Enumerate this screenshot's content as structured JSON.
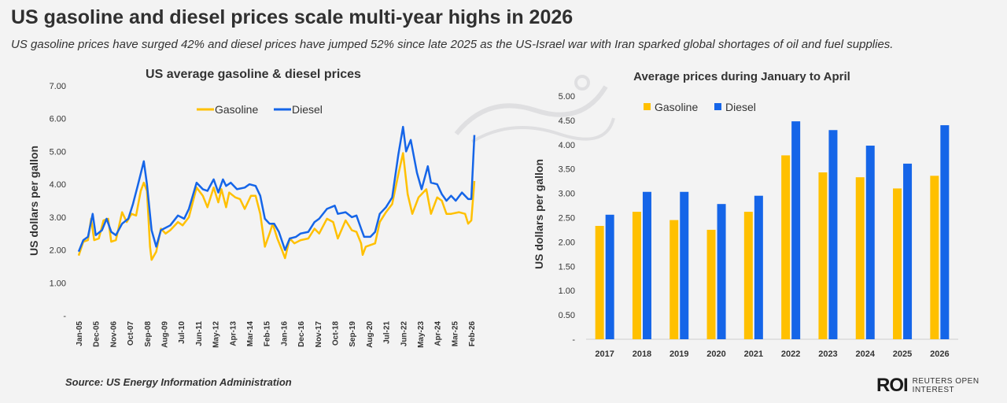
{
  "headline": "US gasoline and diesel prices scale multi-year highs in 2026",
  "subheadline": "US gasoline prices have surged 42% and diesel prices have jumped 52% since late 2025 as the US-Israel war with Iran sparked global shortages of oil and fuel supplies.",
  "source": "Source:  US Energy Information Administration",
  "logo": {
    "mark": "ROI",
    "line1": "REUTERS OPEN",
    "line2": "INTEREST"
  },
  "colors": {
    "gasoline": "#FFC000",
    "diesel": "#1565E8"
  },
  "chart_data": [
    {
      "type": "line",
      "title": "US average gasoline & diesel prices",
      "xlabel": "",
      "ylabel": "US dollars per gallon",
      "ylim": [
        0,
        7
      ],
      "yticks": [
        "-",
        "1.00",
        "2.00",
        "3.00",
        "4.00",
        "5.00",
        "6.00",
        "7.00"
      ],
      "xticks": [
        "Jan-05",
        "Dec-05",
        "Nov-06",
        "Oct-07",
        "Sep-08",
        "Aug-09",
        "Jul-10",
        "Jun-11",
        "May-12",
        "Apr-13",
        "Mar-14",
        "Feb-15",
        "Jan-16",
        "Dec-16",
        "Nov-17",
        "Oct-18",
        "Sep-19",
        "Aug-20",
        "Jul-21",
        "Jun-22",
        "May-23",
        "Apr-24",
        "Mar-25",
        "Feb-26"
      ],
      "legend": "top-center",
      "x_start": "2005-01",
      "series": [
        {
          "name": "Gasoline",
          "color": "#FFC000",
          "points": [
            [
              "2005-01",
              1.83
            ],
            [
              "2005-04",
              2.25
            ],
            [
              "2005-07",
              2.3
            ],
            [
              "2005-09",
              2.95
            ],
            [
              "2005-11",
              2.3
            ],
            [
              "2006-02",
              2.35
            ],
            [
              "2006-05",
              2.9
            ],
            [
              "2006-08",
              2.95
            ],
            [
              "2006-10",
              2.25
            ],
            [
              "2007-01",
              2.3
            ],
            [
              "2007-05",
              3.15
            ],
            [
              "2007-08",
              2.85
            ],
            [
              "2007-11",
              3.1
            ],
            [
              "2008-02",
              3.05
            ],
            [
              "2008-05",
              3.8
            ],
            [
              "2008-07",
              4.05
            ],
            [
              "2008-09",
              3.8
            ],
            [
              "2008-11",
              2.1
            ],
            [
              "2008-12",
              1.7
            ],
            [
              "2009-03",
              1.95
            ],
            [
              "2009-06",
              2.65
            ],
            [
              "2009-09",
              2.5
            ],
            [
              "2009-12",
              2.6
            ],
            [
              "2010-05",
              2.85
            ],
            [
              "2010-08",
              2.75
            ],
            [
              "2010-12",
              3.0
            ],
            [
              "2011-05",
              3.9
            ],
            [
              "2011-09",
              3.65
            ],
            [
              "2011-12",
              3.3
            ],
            [
              "2012-04",
              3.9
            ],
            [
              "2012-07",
              3.45
            ],
            [
              "2012-09",
              3.85
            ],
            [
              "2012-12",
              3.3
            ],
            [
              "2013-02",
              3.75
            ],
            [
              "2013-06",
              3.6
            ],
            [
              "2013-09",
              3.55
            ],
            [
              "2013-12",
              3.25
            ],
            [
              "2014-04",
              3.65
            ],
            [
              "2014-07",
              3.65
            ],
            [
              "2014-10",
              3.1
            ],
            [
              "2015-01",
              2.1
            ],
            [
              "2015-04",
              2.5
            ],
            [
              "2015-06",
              2.8
            ],
            [
              "2015-09",
              2.35
            ],
            [
              "2015-12",
              2.0
            ],
            [
              "2016-02",
              1.75
            ],
            [
              "2016-05",
              2.35
            ],
            [
              "2016-08",
              2.2
            ],
            [
              "2016-12",
              2.3
            ],
            [
              "2017-05",
              2.35
            ],
            [
              "2017-09",
              2.65
            ],
            [
              "2017-12",
              2.5
            ],
            [
              "2018-05",
              2.95
            ],
            [
              "2018-09",
              2.85
            ],
            [
              "2018-12",
              2.35
            ],
            [
              "2019-05",
              2.9
            ],
            [
              "2019-09",
              2.6
            ],
            [
              "2019-12",
              2.55
            ],
            [
              "2020-03",
              2.2
            ],
            [
              "2020-04",
              1.85
            ],
            [
              "2020-06",
              2.1
            ],
            [
              "2020-12",
              2.2
            ],
            [
              "2021-03",
              2.85
            ],
            [
              "2021-07",
              3.15
            ],
            [
              "2021-11",
              3.4
            ],
            [
              "2022-03",
              4.3
            ],
            [
              "2022-06",
              4.95
            ],
            [
              "2022-09",
              3.7
            ],
            [
              "2022-12",
              3.1
            ],
            [
              "2023-04",
              3.6
            ],
            [
              "2023-09",
              3.85
            ],
            [
              "2023-12",
              3.1
            ],
            [
              "2024-04",
              3.6
            ],
            [
              "2024-07",
              3.5
            ],
            [
              "2024-10",
              3.1
            ],
            [
              "2025-01",
              3.1
            ],
            [
              "2025-06",
              3.15
            ],
            [
              "2025-10",
              3.1
            ],
            [
              "2025-12",
              2.8
            ],
            [
              "2026-02",
              2.9
            ],
            [
              "2026-04",
              4.1
            ]
          ]
        },
        {
          "name": "Diesel",
          "color": "#1565E8",
          "points": [
            [
              "2005-01",
              1.95
            ],
            [
              "2005-04",
              2.3
            ],
            [
              "2005-07",
              2.4
            ],
            [
              "2005-10",
              3.1
            ],
            [
              "2005-12",
              2.45
            ],
            [
              "2006-04",
              2.6
            ],
            [
              "2006-07",
              2.95
            ],
            [
              "2006-10",
              2.55
            ],
            [
              "2007-01",
              2.45
            ],
            [
              "2007-05",
              2.8
            ],
            [
              "2007-09",
              2.95
            ],
            [
              "2007-12",
              3.4
            ],
            [
              "2008-03",
              3.95
            ],
            [
              "2008-07",
              4.7
            ],
            [
              "2008-09",
              4.0
            ],
            [
              "2008-12",
              2.6
            ],
            [
              "2009-03",
              2.1
            ],
            [
              "2009-06",
              2.6
            ],
            [
              "2009-12",
              2.75
            ],
            [
              "2010-05",
              3.05
            ],
            [
              "2010-09",
              2.95
            ],
            [
              "2010-12",
              3.25
            ],
            [
              "2011-05",
              4.05
            ],
            [
              "2011-09",
              3.85
            ],
            [
              "2011-12",
              3.8
            ],
            [
              "2012-04",
              4.15
            ],
            [
              "2012-07",
              3.75
            ],
            [
              "2012-10",
              4.15
            ],
            [
              "2012-12",
              3.95
            ],
            [
              "2013-03",
              4.05
            ],
            [
              "2013-07",
              3.85
            ],
            [
              "2013-12",
              3.9
            ],
            [
              "2014-03",
              4.0
            ],
            [
              "2014-07",
              3.95
            ],
            [
              "2014-10",
              3.65
            ],
            [
              "2015-01",
              2.95
            ],
            [
              "2015-04",
              2.8
            ],
            [
              "2015-07",
              2.8
            ],
            [
              "2015-10",
              2.55
            ],
            [
              "2016-02",
              2.0
            ],
            [
              "2016-05",
              2.35
            ],
            [
              "2016-09",
              2.4
            ],
            [
              "2016-12",
              2.5
            ],
            [
              "2017-05",
              2.55
            ],
            [
              "2017-09",
              2.85
            ],
            [
              "2017-12",
              2.95
            ],
            [
              "2018-05",
              3.25
            ],
            [
              "2018-10",
              3.35
            ],
            [
              "2018-12",
              3.1
            ],
            [
              "2019-05",
              3.15
            ],
            [
              "2019-09",
              3.0
            ],
            [
              "2019-12",
              3.05
            ],
            [
              "2020-03",
              2.65
            ],
            [
              "2020-05",
              2.4
            ],
            [
              "2020-09",
              2.4
            ],
            [
              "2020-12",
              2.55
            ],
            [
              "2021-03",
              3.1
            ],
            [
              "2021-07",
              3.3
            ],
            [
              "2021-11",
              3.6
            ],
            [
              "2022-03",
              4.9
            ],
            [
              "2022-06",
              5.75
            ],
            [
              "2022-08",
              5.0
            ],
            [
              "2022-11",
              5.35
            ],
            [
              "2023-03",
              4.35
            ],
            [
              "2023-06",
              3.85
            ],
            [
              "2023-10",
              4.55
            ],
            [
              "2023-12",
              4.05
            ],
            [
              "2024-04",
              4.0
            ],
            [
              "2024-07",
              3.7
            ],
            [
              "2024-10",
              3.5
            ],
            [
              "2025-01",
              3.65
            ],
            [
              "2025-04",
              3.5
            ],
            [
              "2025-08",
              3.75
            ],
            [
              "2025-12",
              3.55
            ],
            [
              "2026-02",
              3.55
            ],
            [
              "2026-04",
              5.5
            ]
          ]
        }
      ]
    },
    {
      "type": "bar",
      "title": "Average prices during January to April",
      "xlabel": "",
      "ylabel": "US dollars per gallon",
      "ylim": [
        0,
        5
      ],
      "yticks": [
        "-",
        "0.50",
        "1.00",
        "1.50",
        "2.00",
        "2.50",
        "3.00",
        "3.50",
        "4.00",
        "4.50",
        "5.00"
      ],
      "legend": "top-left",
      "categories": [
        "2017",
        "2018",
        "2019",
        "2020",
        "2021",
        "2022",
        "2023",
        "2024",
        "2025",
        "2026"
      ],
      "series": [
        {
          "name": "Gasoline",
          "color": "#FFC000",
          "values": [
            2.33,
            2.62,
            2.45,
            2.25,
            2.62,
            3.78,
            3.43,
            3.33,
            3.1,
            3.36
          ]
        },
        {
          "name": "Diesel",
          "color": "#1565E8",
          "values": [
            2.56,
            3.03,
            3.03,
            2.78,
            2.95,
            4.48,
            4.3,
            3.98,
            3.61,
            4.4
          ]
        }
      ]
    }
  ]
}
